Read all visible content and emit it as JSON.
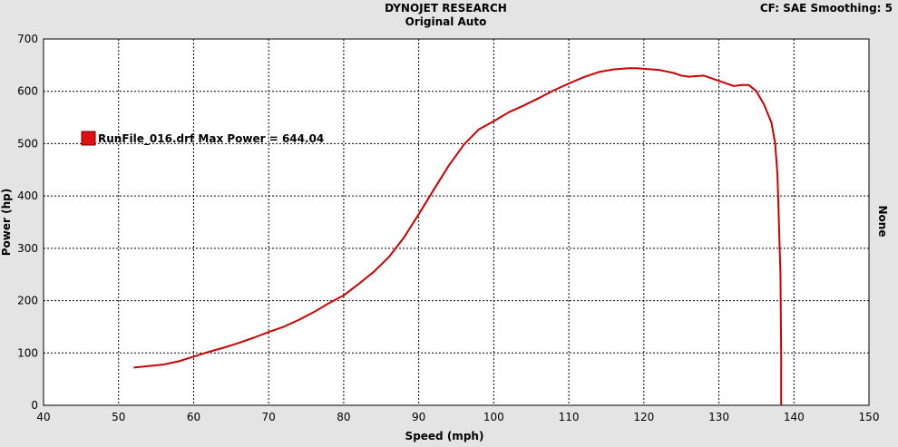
{
  "header": {
    "title": "DYNOJET RESEARCH",
    "subtitle": "Original Auto",
    "correction": "CF: SAE  Smoothing: 5"
  },
  "right_axis_label": "None",
  "legend_text": "RunFile_016.drf Max Power = 644.04",
  "chart_data": {
    "type": "line",
    "title": "DYNOJET RESEARCH",
    "subtitle": "Original Auto",
    "xlabel": "Speed (mph)",
    "ylabel": "Power (hp)",
    "xlim": [
      40,
      150
    ],
    "ylim": [
      0,
      700
    ],
    "xticks": [
      40,
      50,
      60,
      70,
      80,
      90,
      100,
      110,
      120,
      130,
      140,
      150
    ],
    "yticks": [
      0,
      100,
      200,
      300,
      400,
      500,
      600,
      700
    ],
    "grid": true,
    "legend_position": "left",
    "colors": {
      "series": "#cc0000",
      "grid": "#000000",
      "plot_bg": "#ffffff",
      "page_bg": "#e4e4e4"
    },
    "series": [
      {
        "name": "RunFile_016.drf",
        "x": [
          52,
          54,
          56,
          58,
          60,
          62,
          64,
          66,
          68,
          70,
          72,
          74,
          76,
          78,
          80,
          82,
          84,
          86,
          88,
          90,
          92,
          94,
          96,
          98,
          100,
          102,
          104,
          106,
          108,
          110,
          112,
          114,
          116,
          118,
          119,
          120,
          122,
          124,
          125,
          126,
          128,
          130,
          132,
          133,
          134,
          135,
          136,
          137,
          137.5,
          137.8,
          138,
          138.2,
          138.3,
          138.3
        ],
        "values": [
          72,
          75,
          78,
          84,
          93,
          102,
          110,
          119,
          129,
          140,
          150,
          163,
          178,
          195,
          210,
          232,
          255,
          283,
          320,
          365,
          412,
          458,
          498,
          527,
          543,
          560,
          573,
          587,
          602,
          615,
          627,
          637,
          642,
          644,
          644,
          643,
          641,
          635,
          630,
          628,
          630,
          620,
          610,
          612,
          612,
          600,
          575,
          540,
          500,
          440,
          350,
          250,
          100,
          0
        ]
      }
    ]
  }
}
